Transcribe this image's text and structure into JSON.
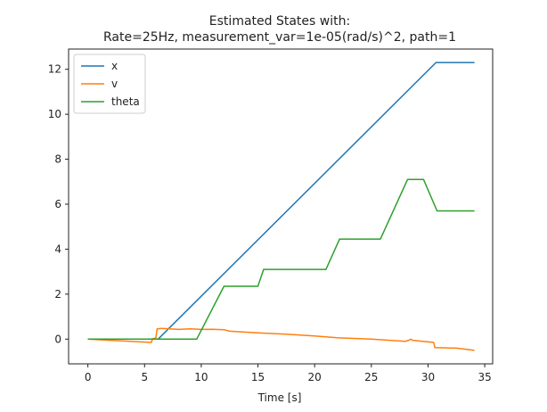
{
  "chart_data": {
    "type": "line",
    "title_line1": "Estimated States with:",
    "title_line2": "Rate=25Hz, measurement_var=1e-05(rad/s)^2, path=1",
    "xlabel": "Time [s]",
    "ylabel": "",
    "xlim": [
      -1.7,
      35.7
    ],
    "ylim": [
      -1.1,
      12.9
    ],
    "xticks": [
      0,
      5,
      10,
      15,
      20,
      25,
      30,
      35
    ],
    "yticks": [
      0,
      2,
      4,
      6,
      8,
      10,
      12
    ],
    "grid": false,
    "legend_position": "upper-left",
    "series": [
      {
        "name": "x",
        "color": "#1f77b4",
        "points": [
          [
            0,
            0
          ],
          [
            5.7,
            0
          ],
          [
            6.2,
            0
          ],
          [
            30.7,
            12.3
          ],
          [
            34.1,
            12.3
          ]
        ]
      },
      {
        "name": "v",
        "color": "#ff7f0e",
        "points": [
          [
            0,
            0
          ],
          [
            5.6,
            -0.15
          ],
          [
            5.7,
            0.02
          ],
          [
            6.0,
            0.05
          ],
          [
            6.1,
            0.45
          ],
          [
            6.5,
            0.48
          ],
          [
            8.0,
            0.43
          ],
          [
            9.0,
            0.46
          ],
          [
            10.0,
            0.43
          ],
          [
            11.0,
            0.44
          ],
          [
            12.0,
            0.42
          ],
          [
            12.5,
            0.35
          ],
          [
            15.0,
            0.28
          ],
          [
            17.5,
            0.22
          ],
          [
            20.0,
            0.14
          ],
          [
            22.0,
            0.06
          ],
          [
            25.0,
            0.0
          ],
          [
            28.0,
            -0.1
          ],
          [
            28.3,
            -0.05
          ],
          [
            28.5,
            0.0
          ],
          [
            28.6,
            -0.05
          ],
          [
            30.5,
            -0.15
          ],
          [
            30.6,
            -0.38
          ],
          [
            32.5,
            -0.4
          ],
          [
            34.1,
            -0.5
          ]
        ]
      },
      {
        "name": "theta",
        "color": "#2ca02c",
        "points": [
          [
            0,
            0
          ],
          [
            9.6,
            0
          ],
          [
            12.0,
            2.35
          ],
          [
            15.0,
            2.35
          ],
          [
            15.5,
            3.1
          ],
          [
            21.0,
            3.1
          ],
          [
            22.2,
            4.45
          ],
          [
            25.8,
            4.45
          ],
          [
            28.2,
            7.1
          ],
          [
            29.6,
            7.1
          ],
          [
            30.8,
            5.7
          ],
          [
            34.1,
            5.7
          ]
        ]
      }
    ]
  }
}
